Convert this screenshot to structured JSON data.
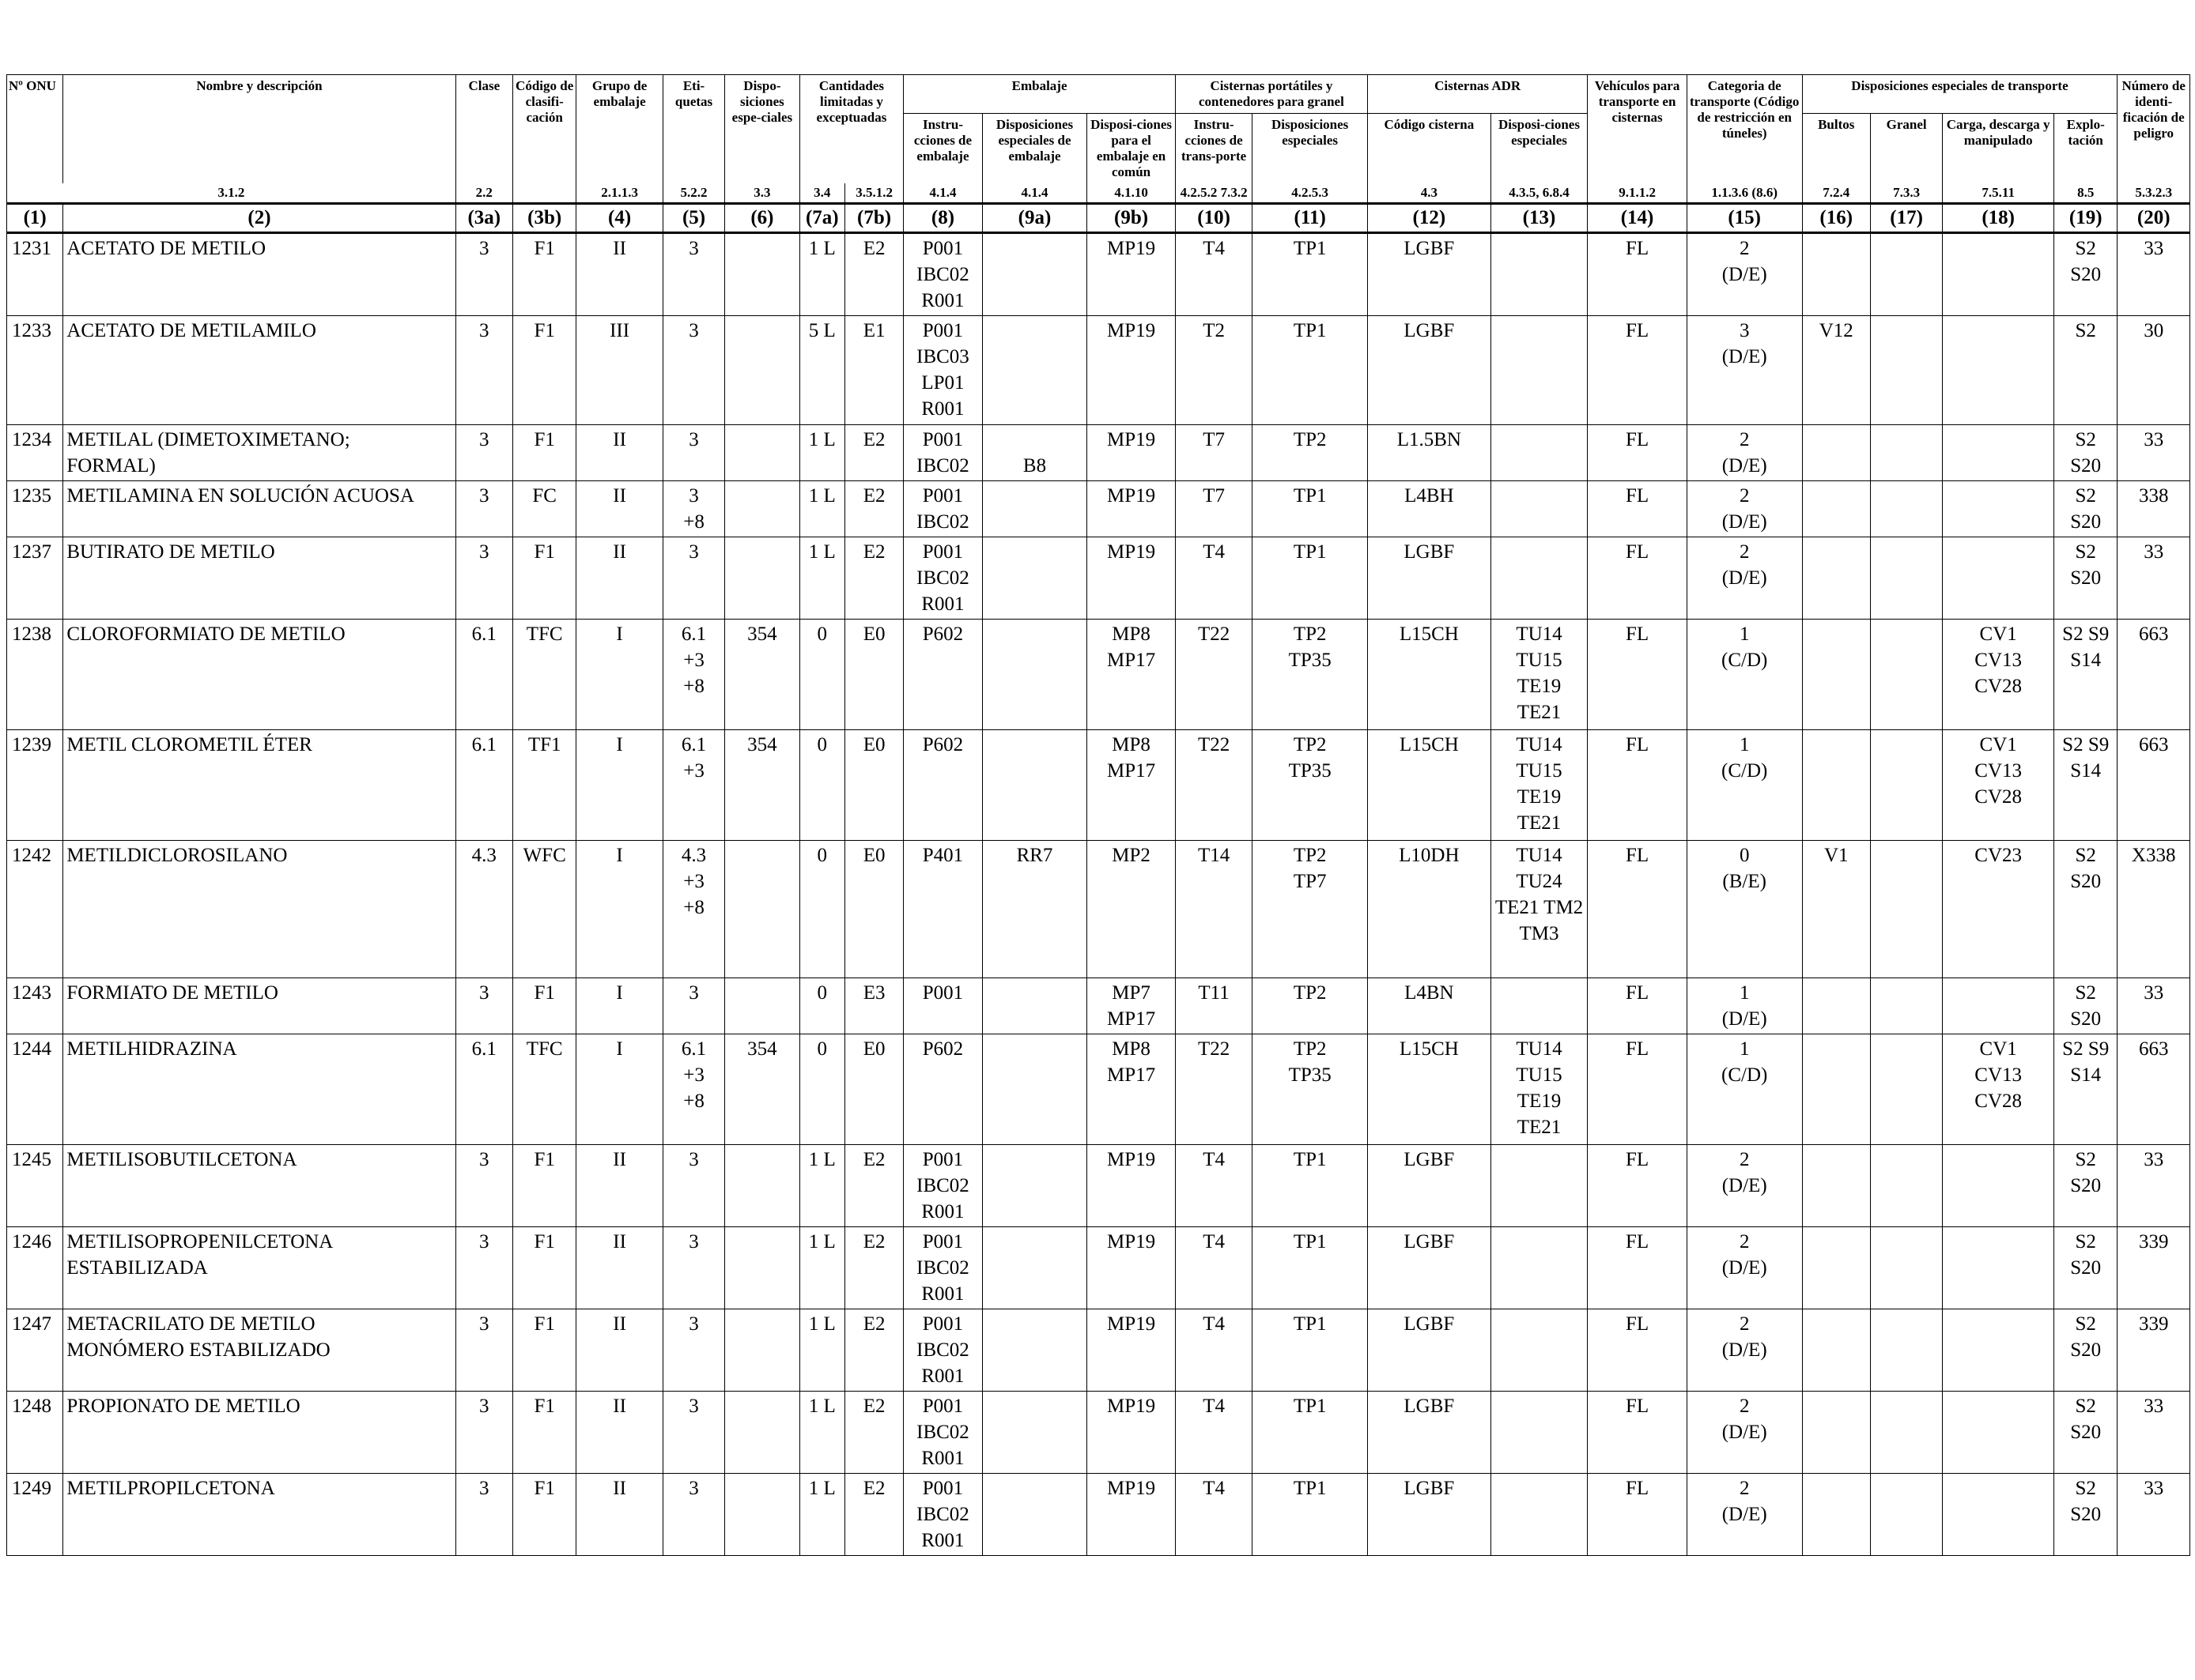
{
  "headers": {
    "un_no": "Nº ONU",
    "name": "Nombre y descripción",
    "class": "Clase",
    "classification_code": "Código de clasifi-cación",
    "packing_group": "Grupo de embalaje",
    "labels": "Eti-quetas",
    "special_provisions": "Dispo-siciones espe-ciales",
    "limited_quantities_group": "Cantidades limitadas y exceptuadas",
    "packaging_group": "Embalaje",
    "packing_instructions": "Instru-cciones de embalaje",
    "special_packing_provisions": "Disposiciones especiales de embalaje",
    "mixed_packing_provisions": "Disposi-ciones para el embalaje en común",
    "portable_tanks_group": "Cisternas portátiles y contenedores para granel",
    "pt_instructions": "Instru-cciones de trans-porte",
    "pt_special_provisions": "Disposiciones especiales",
    "adr_tanks_group": "Cisternas ADR",
    "tank_code": "Código cisterna",
    "tank_special_provisions": "Disposi-ciones especiales",
    "vehicle": "Vehículos para transporte en cisternas",
    "transport_category": "Categoria de transporte (Código de restricción en túneles)",
    "transport_provisions_group": "Disposiciones especiales de transporte",
    "packages": "Bultos",
    "bulk": "Granel",
    "loading": "Carga, descarga y manipulado",
    "operation": "Explo-tación",
    "hazard_id": "Número de identi-ficación de peligro"
  },
  "refs": [
    "3.1.2",
    "2.2",
    "",
    "2.1.1.3",
    "5.2.2",
    "3.3",
    "3.4",
    "3.5.1.2",
    "4.1.4",
    "4.1.4",
    "4.1.10",
    "4.2.5.2 7.3.2",
    "4.2.5.3",
    "4.3",
    "4.3.5, 6.8.4",
    "9.1.1.2",
    "1.1.3.6 (8.6)",
    "7.2.4",
    "7.3.3",
    "7.5.11",
    "8.5",
    "5.3.2.3"
  ],
  "col_numbers": [
    "(1)",
    "(2)",
    "(3a)",
    "(3b)",
    "(4)",
    "(5)",
    "(6)",
    "(7a)",
    "(7b)",
    "(8)",
    "(9a)",
    "(9b)",
    "(10)",
    "(11)",
    "(12)",
    "(13)",
    "(14)",
    "(15)",
    "(16)",
    "(17)",
    "(18)",
    "(19)",
    "(20)"
  ],
  "rows": [
    [
      "1231",
      "ACETATO DE METILO",
      "3",
      "F1",
      "II",
      "3",
      "",
      "1 L",
      "E2",
      "P001\nIBC02\nR001",
      "",
      "MP19",
      "T4",
      "TP1",
      "LGBF",
      "",
      "FL",
      "2\n(D/E)",
      "",
      "",
      "",
      "S2\nS20",
      "33"
    ],
    [
      "1233",
      "ACETATO DE METILAMILO",
      "3",
      "F1",
      "III",
      "3",
      "",
      "5 L",
      "E1",
      "P001\nIBC03\nLP01\nR001",
      "",
      "MP19",
      "T2",
      "TP1",
      "LGBF",
      "",
      "FL",
      "3\n(D/E)",
      "V12",
      "",
      "",
      "S2",
      "30"
    ],
    [
      "1234",
      "METILAL (DIMETOXIMETANO;\nFORMAL)",
      "3",
      "F1",
      "II",
      "3",
      "",
      "1 L",
      "E2",
      "P001\nIBC02",
      "\nB8",
      "MP19",
      "T7",
      "TP2",
      "L1.5BN",
      "",
      "FL",
      "2\n(D/E)",
      "",
      "",
      "",
      "S2\nS20",
      "33"
    ],
    [
      "1235",
      "METILAMINA EN SOLUCIÓN ACUOSA",
      "3",
      "FC",
      "II",
      "3\n+8",
      "",
      "1 L",
      "E2",
      "P001\nIBC02",
      "",
      "MP19",
      "T7",
      "TP1",
      "L4BH",
      "",
      "FL",
      "2\n(D/E)",
      "",
      "",
      "",
      "S2\nS20",
      "338"
    ],
    [
      "1237",
      "BUTIRATO DE METILO",
      "3",
      "F1",
      "II",
      "3",
      "",
      "1 L",
      "E2",
      "P001\nIBC02\nR001",
      "",
      "MP19",
      "T4",
      "TP1",
      "LGBF",
      "",
      "FL",
      "2\n(D/E)",
      "",
      "",
      "",
      "S2\nS20",
      "33"
    ],
    [
      "1238",
      "CLOROFORMIATO DE METILO",
      "6.1",
      "TFC",
      "I",
      "6.1\n+3\n+8",
      "354",
      "0",
      "E0",
      "P602",
      "",
      "MP8\nMP17",
      "T22",
      "TP2\nTP35",
      "L15CH",
      "TU14\nTU15\nTE19\nTE21",
      "FL",
      "1\n(C/D)",
      "",
      "",
      "CV1\nCV13\nCV28",
      "S2 S9\nS14",
      "663"
    ],
    [
      "1239",
      "METIL CLOROMETIL ÉTER",
      "6.1",
      "TF1",
      "I",
      "6.1\n+3",
      "354",
      "0",
      "E0",
      "P602",
      "",
      "MP8\nMP17",
      "T22",
      "TP2\nTP35",
      "L15CH",
      "TU14\nTU15\nTE19\nTE21",
      "FL",
      "1\n(C/D)",
      "",
      "",
      "CV1\nCV13\nCV28",
      "S2 S9\nS14",
      "663"
    ],
    [
      "1242",
      "METILDICLOROSILANO",
      "4.3",
      "WFC",
      "I",
      "4.3\n+3\n+8",
      "",
      "0",
      "E0",
      "P401",
      "RR7",
      "MP2",
      "T14",
      "TP2\nTP7",
      "L10DH",
      "TU14\nTU24\nTE21 TM2\nTM3",
      "FL",
      "0\n(B/E)",
      "V1",
      "",
      "CV23",
      "S2\nS20",
      "X338"
    ],
    [
      "1243",
      "FORMIATO DE METILO",
      "3",
      "F1",
      "I",
      "3",
      "",
      "0",
      "E3",
      "P001",
      "",
      "MP7\nMP17",
      "T11",
      "TP2",
      "L4BN",
      "",
      "FL",
      "1\n(D/E)",
      "",
      "",
      "",
      "S2\nS20",
      "33"
    ],
    [
      "1244",
      "METILHIDRAZINA",
      "6.1",
      "TFC",
      "I",
      "6.1\n+3\n+8",
      "354",
      "0",
      "E0",
      "P602",
      "",
      "MP8\nMP17",
      "T22",
      "TP2\nTP35",
      "L15CH",
      "TU14\nTU15\nTE19\nTE21",
      "FL",
      "1\n(C/D)",
      "",
      "",
      "CV1\nCV13\nCV28",
      "S2 S9\nS14",
      "663"
    ],
    [
      "1245",
      "METILISOBUTILCETONA",
      "3",
      "F1",
      "II",
      "3",
      "",
      "1 L",
      "E2",
      "P001\nIBC02\nR001",
      "",
      "MP19",
      "T4",
      "TP1",
      "LGBF",
      "",
      "FL",
      "2\n(D/E)",
      "",
      "",
      "",
      "S2\nS20",
      "33"
    ],
    [
      "1246",
      "METILISOPROPENILCETONA\nESTABILIZADA",
      "3",
      "F1",
      "II",
      "3",
      "",
      "1 L",
      "E2",
      "P001\nIBC02\nR001",
      "",
      "MP19",
      "T4",
      "TP1",
      "LGBF",
      "",
      "FL",
      "2\n(D/E)",
      "",
      "",
      "",
      "S2\nS20",
      "339"
    ],
    [
      "1247",
      "METACRILATO DE METILO\nMONÓMERO ESTABILIZADO",
      "3",
      "F1",
      "II",
      "3",
      "",
      "1 L",
      "E2",
      "P001\nIBC02\nR001",
      "",
      "MP19",
      "T4",
      "TP1",
      "LGBF",
      "",
      "FL",
      "2\n(D/E)",
      "",
      "",
      "",
      "S2\nS20",
      "339"
    ],
    [
      "1248",
      "PROPIONATO DE METILO",
      "3",
      "F1",
      "II",
      "3",
      "",
      "1 L",
      "E2",
      "P001\nIBC02\nR001",
      "",
      "MP19",
      "T4",
      "TP1",
      "LGBF",
      "",
      "FL",
      "2\n(D/E)",
      "",
      "",
      "",
      "S2\nS20",
      "33"
    ],
    [
      "1249",
      "METILPROPILCETONA",
      "3",
      "F1",
      "II",
      "3",
      "",
      "1 L",
      "E2",
      "P001\nIBC02\nR001",
      "",
      "MP19",
      "T4",
      "TP1",
      "LGBF",
      "",
      "FL",
      "2\n(D/E)",
      "",
      "",
      "",
      "S2\nS20",
      "33"
    ]
  ]
}
